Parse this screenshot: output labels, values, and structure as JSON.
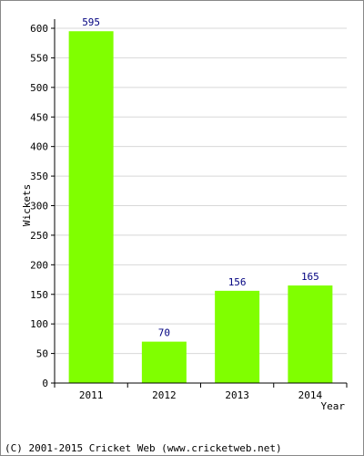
{
  "chart_data": {
    "type": "bar",
    "categories": [
      "2011",
      "2012",
      "2013",
      "2014"
    ],
    "values": [
      595,
      70,
      156,
      165
    ],
    "data_labels": [
      "595",
      "70",
      "156",
      "165"
    ],
    "xlabel": "Year",
    "ylabel": "Wickets",
    "ylim": [
      0,
      600
    ],
    "yticks": [
      0,
      50,
      100,
      150,
      200,
      250,
      300,
      350,
      400,
      450,
      500,
      550,
      600
    ],
    "grid": true,
    "bar_color": "#80ff00"
  },
  "footer": "(C) 2001-2015 Cricket Web (www.cricketweb.net)"
}
